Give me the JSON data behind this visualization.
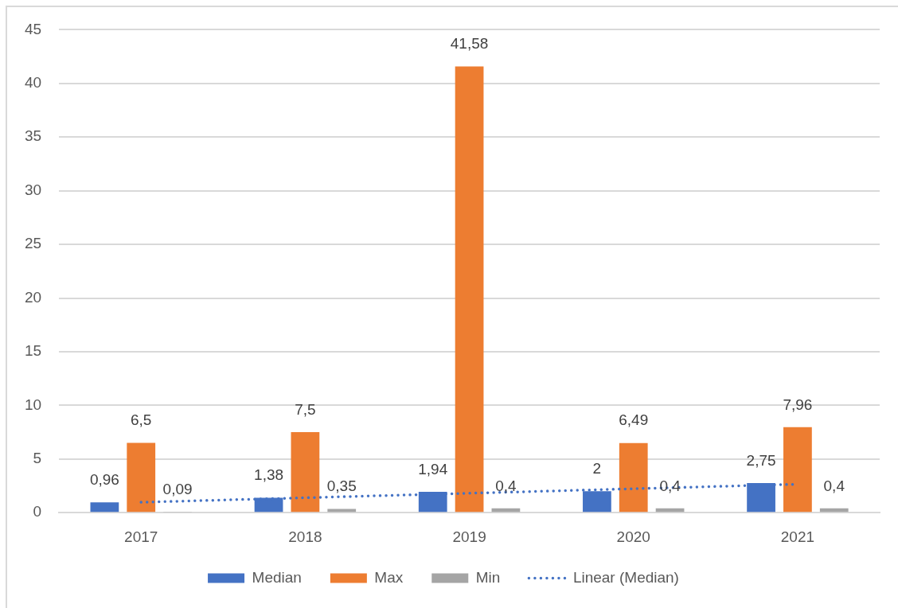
{
  "chart_data": {
    "type": "bar",
    "categories": [
      "2017",
      "2018",
      "2019",
      "2020",
      "2021"
    ],
    "series": [
      {
        "name": "Median",
        "color": "#4472c4",
        "values": [
          0.96,
          1.38,
          1.94,
          2,
          2.75
        ],
        "value_labels": [
          "0,96",
          "1,38",
          "1,94",
          "2",
          "2,75"
        ]
      },
      {
        "name": "Max",
        "color": "#ed7d31",
        "values": [
          6.5,
          7.5,
          41.58,
          6.49,
          7.96
        ],
        "value_labels": [
          "6,5",
          "7,5",
          "41,58",
          "6,49",
          "7,96"
        ]
      },
      {
        "name": "Min",
        "color": "#a5a5a5",
        "values": [
          0.09,
          0.35,
          0.4,
          0.4,
          0.4
        ],
        "value_labels": [
          "0,09",
          "0,35",
          "0,4",
          "0,4",
          "0,4"
        ]
      },
      {
        "name": "Linear (Median)",
        "type": "line",
        "color": "#4472c4",
        "values": [
          0.97,
          1.39,
          1.81,
          2.23,
          2.65
        ],
        "line_style": "dotted",
        "marker": "none"
      }
    ],
    "ylim": [
      0,
      45
    ],
    "yticks": [
      0,
      5,
      10,
      15,
      20,
      25,
      30,
      35,
      40,
      45
    ],
    "grid": "y",
    "legend": "bottom"
  }
}
